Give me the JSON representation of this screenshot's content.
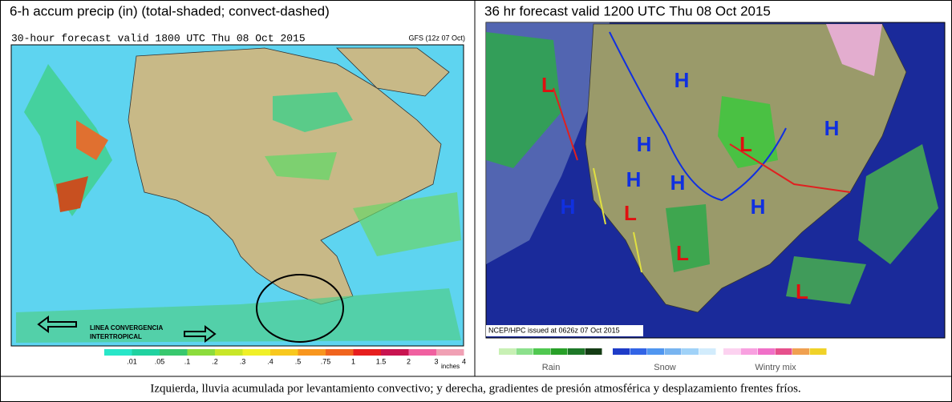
{
  "left_panel": {
    "title": "6-h accum precip (in) (total-shaded; convect-dashed)",
    "subtitle": "30-hour forecast valid 1800 UTC Thu 08 Oct 2015",
    "model": "GFS (12z 07 Oct)",
    "annotation": [
      "LINEA CONVERGENCIA",
      "INTERTROPICAL"
    ],
    "legend": {
      "labels": [
        ".01",
        ".05",
        ".1",
        ".2",
        ".3",
        ".4",
        ".5",
        ".75",
        "1",
        "1.5",
        "2",
        "3",
        "4"
      ],
      "units": "inches"
    }
  },
  "right_panel": {
    "title": "36 hr forecast valid 1200 UTC Thu 08 Oct 2015",
    "credit": "NCEP/HPC issued at 0626z  07 Oct 2015",
    "pressure_centers": [
      "L",
      "H",
      "H",
      "L",
      "H",
      "H",
      "H",
      "H",
      "L",
      "H",
      "L",
      "L"
    ],
    "legend": [
      "Rain",
      "Snow",
      "Wintry mix"
    ]
  },
  "caption": "Izquierda, lluvia acumulada por levantamiento convectivo; y derecha, gradientes de presión atmosférica y desplazamiento frentes fríos."
}
